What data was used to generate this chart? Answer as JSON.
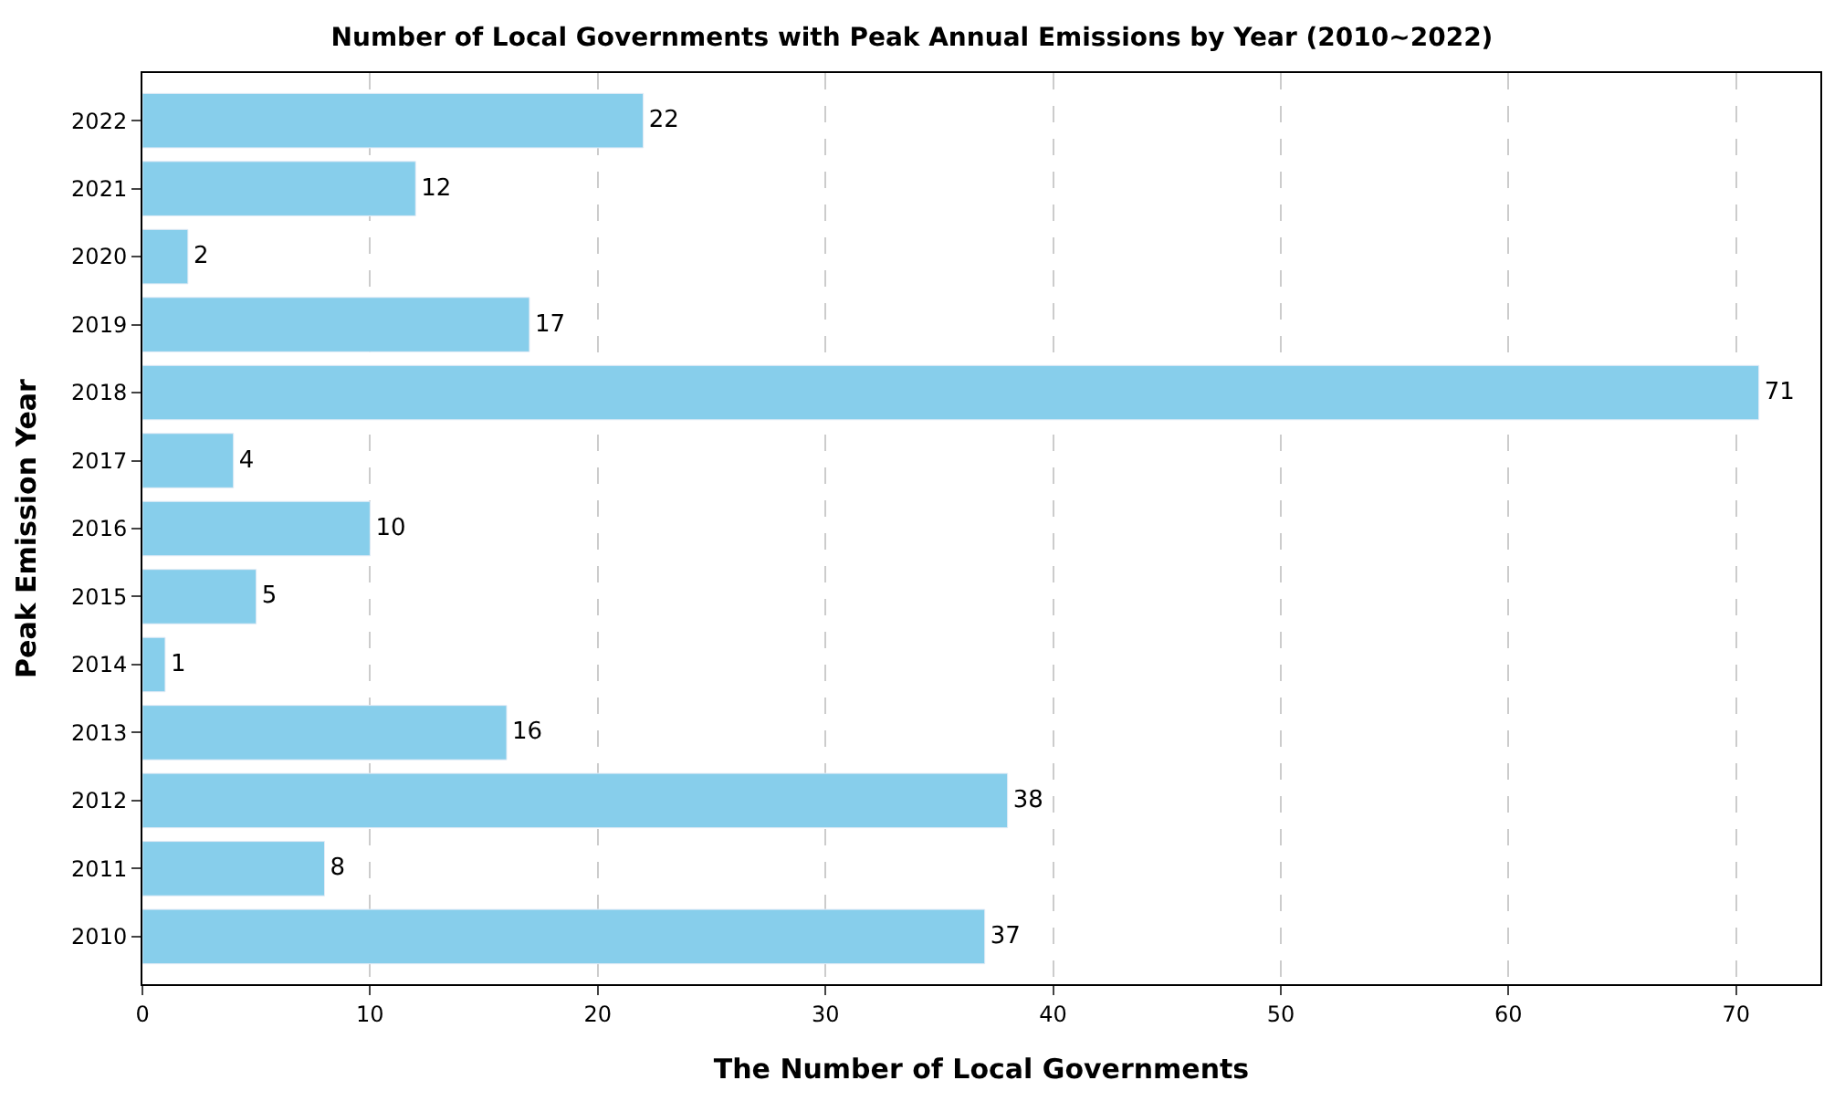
{
  "chart_data": {
    "type": "bar",
    "orientation": "horizontal",
    "title": "Number of Local Governments with Peak Annual Emissions by Year (2010~2022)",
    "xlabel": "The Number of Local Governments",
    "ylabel": "Peak Emission Year",
    "categories": [
      "2022",
      "2021",
      "2020",
      "2019",
      "2018",
      "2017",
      "2016",
      "2015",
      "2014",
      "2013",
      "2012",
      "2011",
      "2010"
    ],
    "values": [
      22,
      12,
      2,
      17,
      71,
      4,
      10,
      5,
      1,
      16,
      38,
      8,
      37
    ],
    "color": "#87ceeb",
    "xlim": [
      0,
      73.7
    ],
    "xticks": [
      0,
      10,
      20,
      30,
      40,
      50,
      60,
      70
    ],
    "grid": "x",
    "line_style": "dashed",
    "data_labels": true
  }
}
